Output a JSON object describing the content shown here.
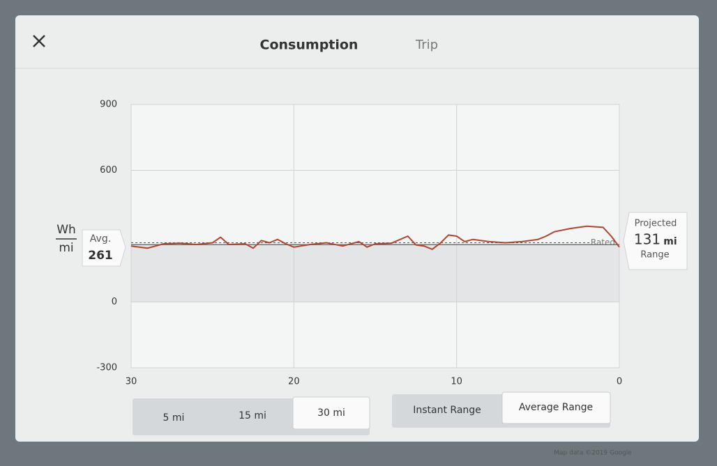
{
  "header": {
    "tabs": [
      "Consumption",
      "Trip"
    ]
  },
  "chart_data": {
    "type": "line",
    "y_unit_top": "Wh",
    "y_unit_bottom": "mi",
    "x": [
      30,
      29,
      28,
      27,
      26,
      25,
      24.5,
      24,
      23,
      22.5,
      22,
      21.5,
      21,
      20.5,
      20,
      19,
      18,
      17,
      16,
      15.5,
      15,
      14,
      13,
      12.5,
      12,
      11.5,
      11,
      10.5,
      10,
      9.5,
      9,
      8,
      7,
      6,
      5,
      4.5,
      4,
      3,
      2,
      1,
      0.5,
      0
    ],
    "values": [
      255,
      245,
      265,
      268,
      262,
      270,
      295,
      262,
      265,
      245,
      280,
      270,
      285,
      265,
      250,
      262,
      270,
      255,
      275,
      250,
      265,
      268,
      300,
      260,
      255,
      240,
      268,
      305,
      300,
      275,
      285,
      275,
      270,
      275,
      285,
      300,
      320,
      335,
      345,
      340,
      300,
      250
    ],
    "color": "#b0452f",
    "xlim": [
      30,
      0
    ],
    "xticks": [
      30,
      20,
      10,
      0
    ],
    "ylim": [
      -300,
      900
    ],
    "yticks": [
      -300,
      0,
      600,
      900
    ],
    "grid": true,
    "avg_label": "Avg.",
    "avg_value": 261,
    "rated_label": "Rated",
    "rated_value": 270,
    "projected_label": "Projected",
    "projected_value": 131,
    "projected_unit": "mi",
    "projected_caption": "Range"
  },
  "controls": {
    "distance": [
      "5 mi",
      "15 mi",
      "30 mi"
    ],
    "range_mode": [
      "Instant Range",
      "Average Range"
    ]
  },
  "footer": {
    "attribution": "Map data ©2019 Google"
  }
}
